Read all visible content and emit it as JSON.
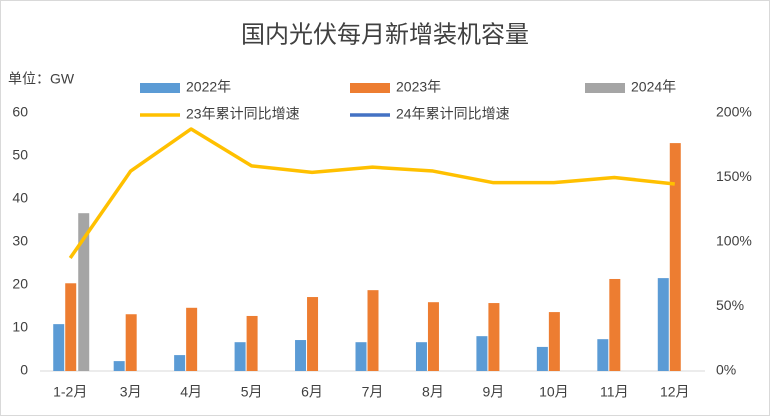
{
  "chart_data": {
    "type": "bar-line",
    "title": "国内光伏每月新增装机容量",
    "y_label": "单位：GW",
    "categories": [
      "1-2月",
      "3月",
      "4月",
      "5月",
      "6月",
      "7月",
      "8月",
      "9月",
      "10月",
      "11月",
      "12月"
    ],
    "series": [
      {
        "name": "2022年",
        "type": "bar",
        "color": "#5b9bd5",
        "values": [
          10.9,
          2.3,
          3.7,
          6.7,
          7.2,
          6.7,
          6.7,
          8.1,
          5.6,
          7.4,
          21.6
        ]
      },
      {
        "name": "2023年",
        "type": "bar",
        "color": "#ed7d31",
        "values": [
          20.4,
          13.2,
          14.7,
          12.8,
          17.2,
          18.8,
          16.0,
          15.8,
          13.7,
          21.4,
          53.0
        ]
      },
      {
        "name": "2024年",
        "type": "bar",
        "color": "#a5a5a5",
        "values": [
          36.7,
          null,
          null,
          null,
          null,
          null,
          null,
          null,
          null,
          null,
          null
        ]
      },
      {
        "name": "23年累计同比增速",
        "type": "line",
        "axis": "y2",
        "color": "#ffc000",
        "values": [
          87.6,
          155,
          187.6,
          159,
          154,
          158,
          155,
          146,
          146,
          150,
          145
        ]
      },
      {
        "name": "24年累计同比增速",
        "type": "line",
        "axis": "y2",
        "color": "#4472c4",
        "values": [
          null,
          null,
          null,
          null,
          null,
          null,
          null,
          null,
          null,
          null,
          null
        ]
      }
    ],
    "ylim": [
      0,
      60
    ],
    "yticks": [
      0,
      10,
      20,
      30,
      40,
      50,
      60
    ],
    "y2lim": [
      0,
      200
    ],
    "y2ticks": [
      {
        "value": 0,
        "label": "0%"
      },
      {
        "value": 50,
        "label": "50%"
      },
      {
        "value": 100,
        "label": "100%"
      },
      {
        "value": 150,
        "label": "150%"
      },
      {
        "value": 200,
        "label": "200%"
      }
    ]
  }
}
